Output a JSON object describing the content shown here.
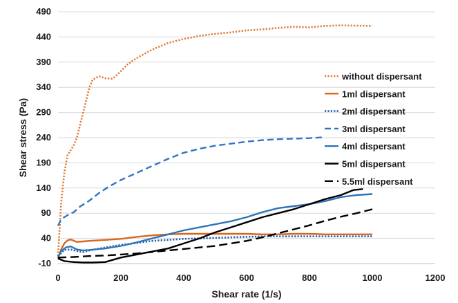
{
  "chart_data": {
    "type": "line",
    "xlabel": "Shear rate (1/s)",
    "ylabel": "Shear stress (Pa)",
    "xlim": [
      0,
      1200
    ],
    "ylim": [
      -10,
      490
    ],
    "xticks": [
      0,
      200,
      400,
      600,
      800,
      1000,
      1200
    ],
    "yticks": [
      -10,
      40,
      90,
      140,
      190,
      240,
      290,
      340,
      390,
      440,
      490
    ],
    "grid": "horizontal",
    "legend_position": "right",
    "series": [
      {
        "name": "without dispersant",
        "color": "#E07B39",
        "dash": "dotted",
        "points": [
          [
            0,
            5
          ],
          [
            10,
            110
          ],
          [
            20,
            170
          ],
          [
            30,
            205
          ],
          [
            40,
            215
          ],
          [
            50,
            225
          ],
          [
            60,
            240
          ],
          [
            70,
            265
          ],
          [
            80,
            290
          ],
          [
            90,
            315
          ],
          [
            100,
            340
          ],
          [
            110,
            355
          ],
          [
            130,
            362
          ],
          [
            150,
            358
          ],
          [
            170,
            357
          ],
          [
            180,
            360
          ],
          [
            200,
            372
          ],
          [
            220,
            385
          ],
          [
            250,
            398
          ],
          [
            300,
            415
          ],
          [
            350,
            428
          ],
          [
            400,
            436
          ],
          [
            450,
            442
          ],
          [
            500,
            446
          ],
          [
            550,
            449
          ],
          [
            600,
            453
          ],
          [
            650,
            455
          ],
          [
            700,
            458
          ],
          [
            750,
            460
          ],
          [
            800,
            459
          ],
          [
            850,
            462
          ],
          [
            900,
            463
          ],
          [
            1000,
            462
          ]
        ]
      },
      {
        "name": "1ml dispersant",
        "color": "#D9651E",
        "dash": "solid",
        "points": [
          [
            0,
            0
          ],
          [
            10,
            18
          ],
          [
            20,
            30
          ],
          [
            30,
            36
          ],
          [
            40,
            38
          ],
          [
            60,
            33
          ],
          [
            80,
            34
          ],
          [
            100,
            35
          ],
          [
            150,
            37
          ],
          [
            200,
            39
          ],
          [
            250,
            43
          ],
          [
            300,
            46
          ],
          [
            350,
            48
          ],
          [
            400,
            49
          ],
          [
            450,
            49
          ],
          [
            500,
            49
          ],
          [
            550,
            49
          ],
          [
            600,
            49
          ],
          [
            650,
            48
          ],
          [
            700,
            48
          ],
          [
            750,
            49
          ],
          [
            800,
            49
          ],
          [
            850,
            48
          ],
          [
            900,
            48
          ],
          [
            950,
            48
          ],
          [
            1000,
            48
          ]
        ]
      },
      {
        "name": "2ml dispersant",
        "color": "#1F5FAD",
        "dash": "dotted",
        "points": [
          [
            0,
            5
          ],
          [
            20,
            17
          ],
          [
            40,
            18
          ],
          [
            60,
            15
          ],
          [
            80,
            13
          ],
          [
            100,
            16
          ],
          [
            150,
            22
          ],
          [
            200,
            27
          ],
          [
            250,
            31
          ],
          [
            300,
            35
          ],
          [
            350,
            37
          ],
          [
            400,
            39
          ],
          [
            450,
            40
          ],
          [
            500,
            41
          ],
          [
            550,
            42
          ],
          [
            600,
            43
          ],
          [
            650,
            44
          ],
          [
            700,
            44
          ],
          [
            800,
            44
          ],
          [
            900,
            44
          ],
          [
            1000,
            44
          ]
        ]
      },
      {
        "name": "3ml dispersant",
        "color": "#2F75C4",
        "dash": "dashed",
        "points": [
          [
            0,
            65
          ],
          [
            10,
            78
          ],
          [
            30,
            86
          ],
          [
            50,
            92
          ],
          [
            70,
            103
          ],
          [
            100,
            115
          ],
          [
            130,
            130
          ],
          [
            160,
            142
          ],
          [
            200,
            156
          ],
          [
            250,
            170
          ],
          [
            300,
            184
          ],
          [
            350,
            198
          ],
          [
            400,
            210
          ],
          [
            450,
            218
          ],
          [
            500,
            224
          ],
          [
            550,
            228
          ],
          [
            600,
            232
          ],
          [
            650,
            235
          ],
          [
            700,
            237
          ],
          [
            750,
            238
          ],
          [
            800,
            239
          ],
          [
            850,
            241
          ]
        ]
      },
      {
        "name": "4ml dispersant",
        "color": "#2E75B6",
        "dash": "solid",
        "points": [
          [
            0,
            2
          ],
          [
            10,
            15
          ],
          [
            25,
            22
          ],
          [
            40,
            24
          ],
          [
            60,
            18
          ],
          [
            80,
            16
          ],
          [
            100,
            17
          ],
          [
            150,
            20
          ],
          [
            200,
            25
          ],
          [
            250,
            32
          ],
          [
            300,
            40
          ],
          [
            350,
            48
          ],
          [
            400,
            56
          ],
          [
            450,
            62
          ],
          [
            500,
            68
          ],
          [
            550,
            74
          ],
          [
            600,
            82
          ],
          [
            650,
            92
          ],
          [
            700,
            100
          ],
          [
            750,
            104
          ],
          [
            800,
            108
          ],
          [
            850,
            114
          ],
          [
            900,
            122
          ],
          [
            950,
            126
          ],
          [
            1000,
            128
          ]
        ]
      },
      {
        "name": "5ml dispersant",
        "color": "#000000",
        "dash": "solid",
        "points": [
          [
            0,
            0
          ],
          [
            20,
            -5
          ],
          [
            50,
            -7
          ],
          [
            80,
            -8
          ],
          [
            110,
            -8
          ],
          [
            150,
            -7
          ],
          [
            200,
            2
          ],
          [
            250,
            8
          ],
          [
            300,
            14
          ],
          [
            350,
            20
          ],
          [
            400,
            30
          ],
          [
            450,
            40
          ],
          [
            500,
            52
          ],
          [
            550,
            62
          ],
          [
            600,
            72
          ],
          [
            650,
            82
          ],
          [
            700,
            90
          ],
          [
            750,
            98
          ],
          [
            800,
            108
          ],
          [
            850,
            118
          ],
          [
            900,
            126
          ],
          [
            940,
            136
          ],
          [
            970,
            138
          ]
        ]
      },
      {
        "name": "5.5ml dispersant",
        "color": "#000000",
        "dash": "longdash",
        "points": [
          [
            0,
            2
          ],
          [
            50,
            3
          ],
          [
            100,
            5
          ],
          [
            150,
            6
          ],
          [
            200,
            8
          ],
          [
            250,
            10
          ],
          [
            300,
            13
          ],
          [
            350,
            16
          ],
          [
            400,
            19
          ],
          [
            450,
            22
          ],
          [
            500,
            25
          ],
          [
            550,
            30
          ],
          [
            600,
            35
          ],
          [
            650,
            42
          ],
          [
            700,
            50
          ],
          [
            750,
            58
          ],
          [
            800,
            66
          ],
          [
            850,
            75
          ],
          [
            900,
            83
          ],
          [
            950,
            90
          ],
          [
            1000,
            98
          ]
        ]
      }
    ]
  }
}
